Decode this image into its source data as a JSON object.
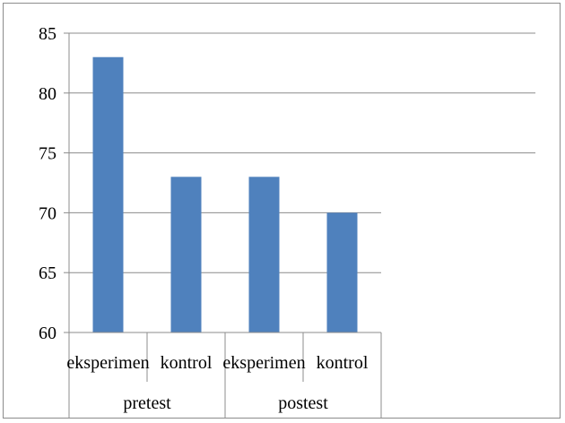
{
  "chart_data": {
    "type": "bar",
    "categories": [
      "eksperimen",
      "kontrol",
      "eksperimen",
      "kontrol"
    ],
    "groups": [
      {
        "label": "pretest",
        "span": 2
      },
      {
        "label": "postest",
        "span": 2
      }
    ],
    "values": [
      83,
      73,
      73,
      70
    ],
    "ylim": [
      60,
      85
    ],
    "yticks": [
      60,
      65,
      70,
      75,
      80,
      85
    ],
    "grid": true,
    "bar_color": "#4f81bd",
    "title": "",
    "xlabel": "",
    "ylabel": ""
  }
}
